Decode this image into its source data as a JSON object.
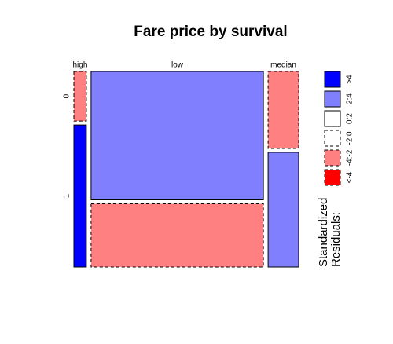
{
  "chart_data": {
    "type": "mosaic",
    "title": "Fare price by survival",
    "categories": [
      "high",
      "low",
      "median"
    ],
    "series": [
      {
        "name": "0",
        "values": [
          1.5,
          53.6,
          5.7
        ],
        "shade": [
          4,
          1,
          4
        ]
      },
      {
        "name": "1",
        "values": [
          4.3,
          26.4,
          8.5
        ],
        "shade": [
          0,
          4,
          1
        ]
      }
    ],
    "legend_title": [
      "Standardized",
      "Residuals:"
    ],
    "legend": [
      {
        "name": ">4",
        "color": "#0000ff",
        "dashed": false
      },
      {
        "name": "2:4",
        "color": "#8080ff",
        "dashed": false
      },
      {
        "name": "0:2",
        "color": "#ffffff",
        "dashed": false
      },
      {
        "name": "-2:0",
        "color": "#ffffff",
        "dashed": true
      },
      {
        "name": "-4:-2",
        "color": "#ff8080",
        "dashed": true
      },
      {
        "name": "<-4",
        "color": "#ff0000",
        "dashed": true
      }
    ]
  }
}
